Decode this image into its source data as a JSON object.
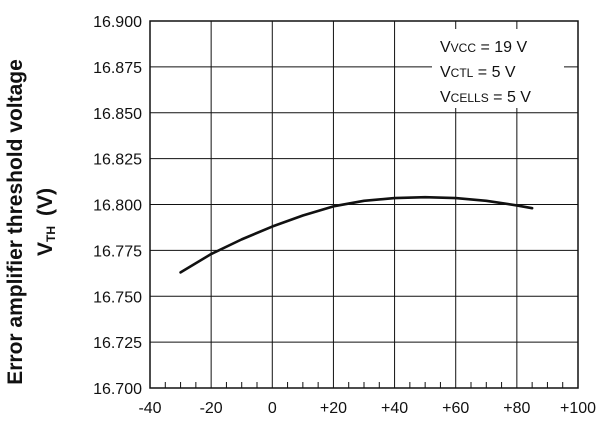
{
  "chart_data": {
    "type": "line",
    "ylabel": "Error amplifier threshold voltage",
    "ylabel_symbol": {
      "main": "V",
      "subscript": "TH",
      "unit": "(V)"
    },
    "xlim": [
      -40,
      100
    ],
    "ylim": [
      16.7,
      16.9
    ],
    "x_ticks": [
      -40,
      -20,
      0,
      20,
      40,
      60,
      80,
      100
    ],
    "x_tick_labels": [
      "-40",
      "-20",
      "0",
      "+20",
      "+40",
      "+60",
      "+80",
      "+100"
    ],
    "y_ticks": [
      16.7,
      16.725,
      16.75,
      16.775,
      16.8,
      16.825,
      16.85,
      16.875,
      16.9
    ],
    "y_tick_labels": [
      "16.700",
      "16.725",
      "16.750",
      "16.775",
      "16.800",
      "16.825",
      "16.850",
      "16.875",
      "16.900"
    ],
    "x_minor_step": 5,
    "grid": true,
    "legend_position": "top-right",
    "annotations": [
      {
        "main": "V",
        "subscript": "VCC",
        "rest": " = 19 V"
      },
      {
        "main": "V",
        "subscript": "CTL",
        "rest": " = 5 V"
      },
      {
        "main": "V",
        "subscript": "CELLS",
        "rest": " = 5 V"
      }
    ],
    "series": [
      {
        "color": "#111111",
        "x": [
          -30,
          -20,
          -10,
          0,
          10,
          20,
          30,
          40,
          50,
          60,
          70,
          80,
          85
        ],
        "y": [
          16.763,
          16.773,
          16.781,
          16.788,
          16.794,
          16.799,
          16.802,
          16.8035,
          16.804,
          16.8035,
          16.802,
          16.7995,
          16.798
        ]
      }
    ]
  }
}
